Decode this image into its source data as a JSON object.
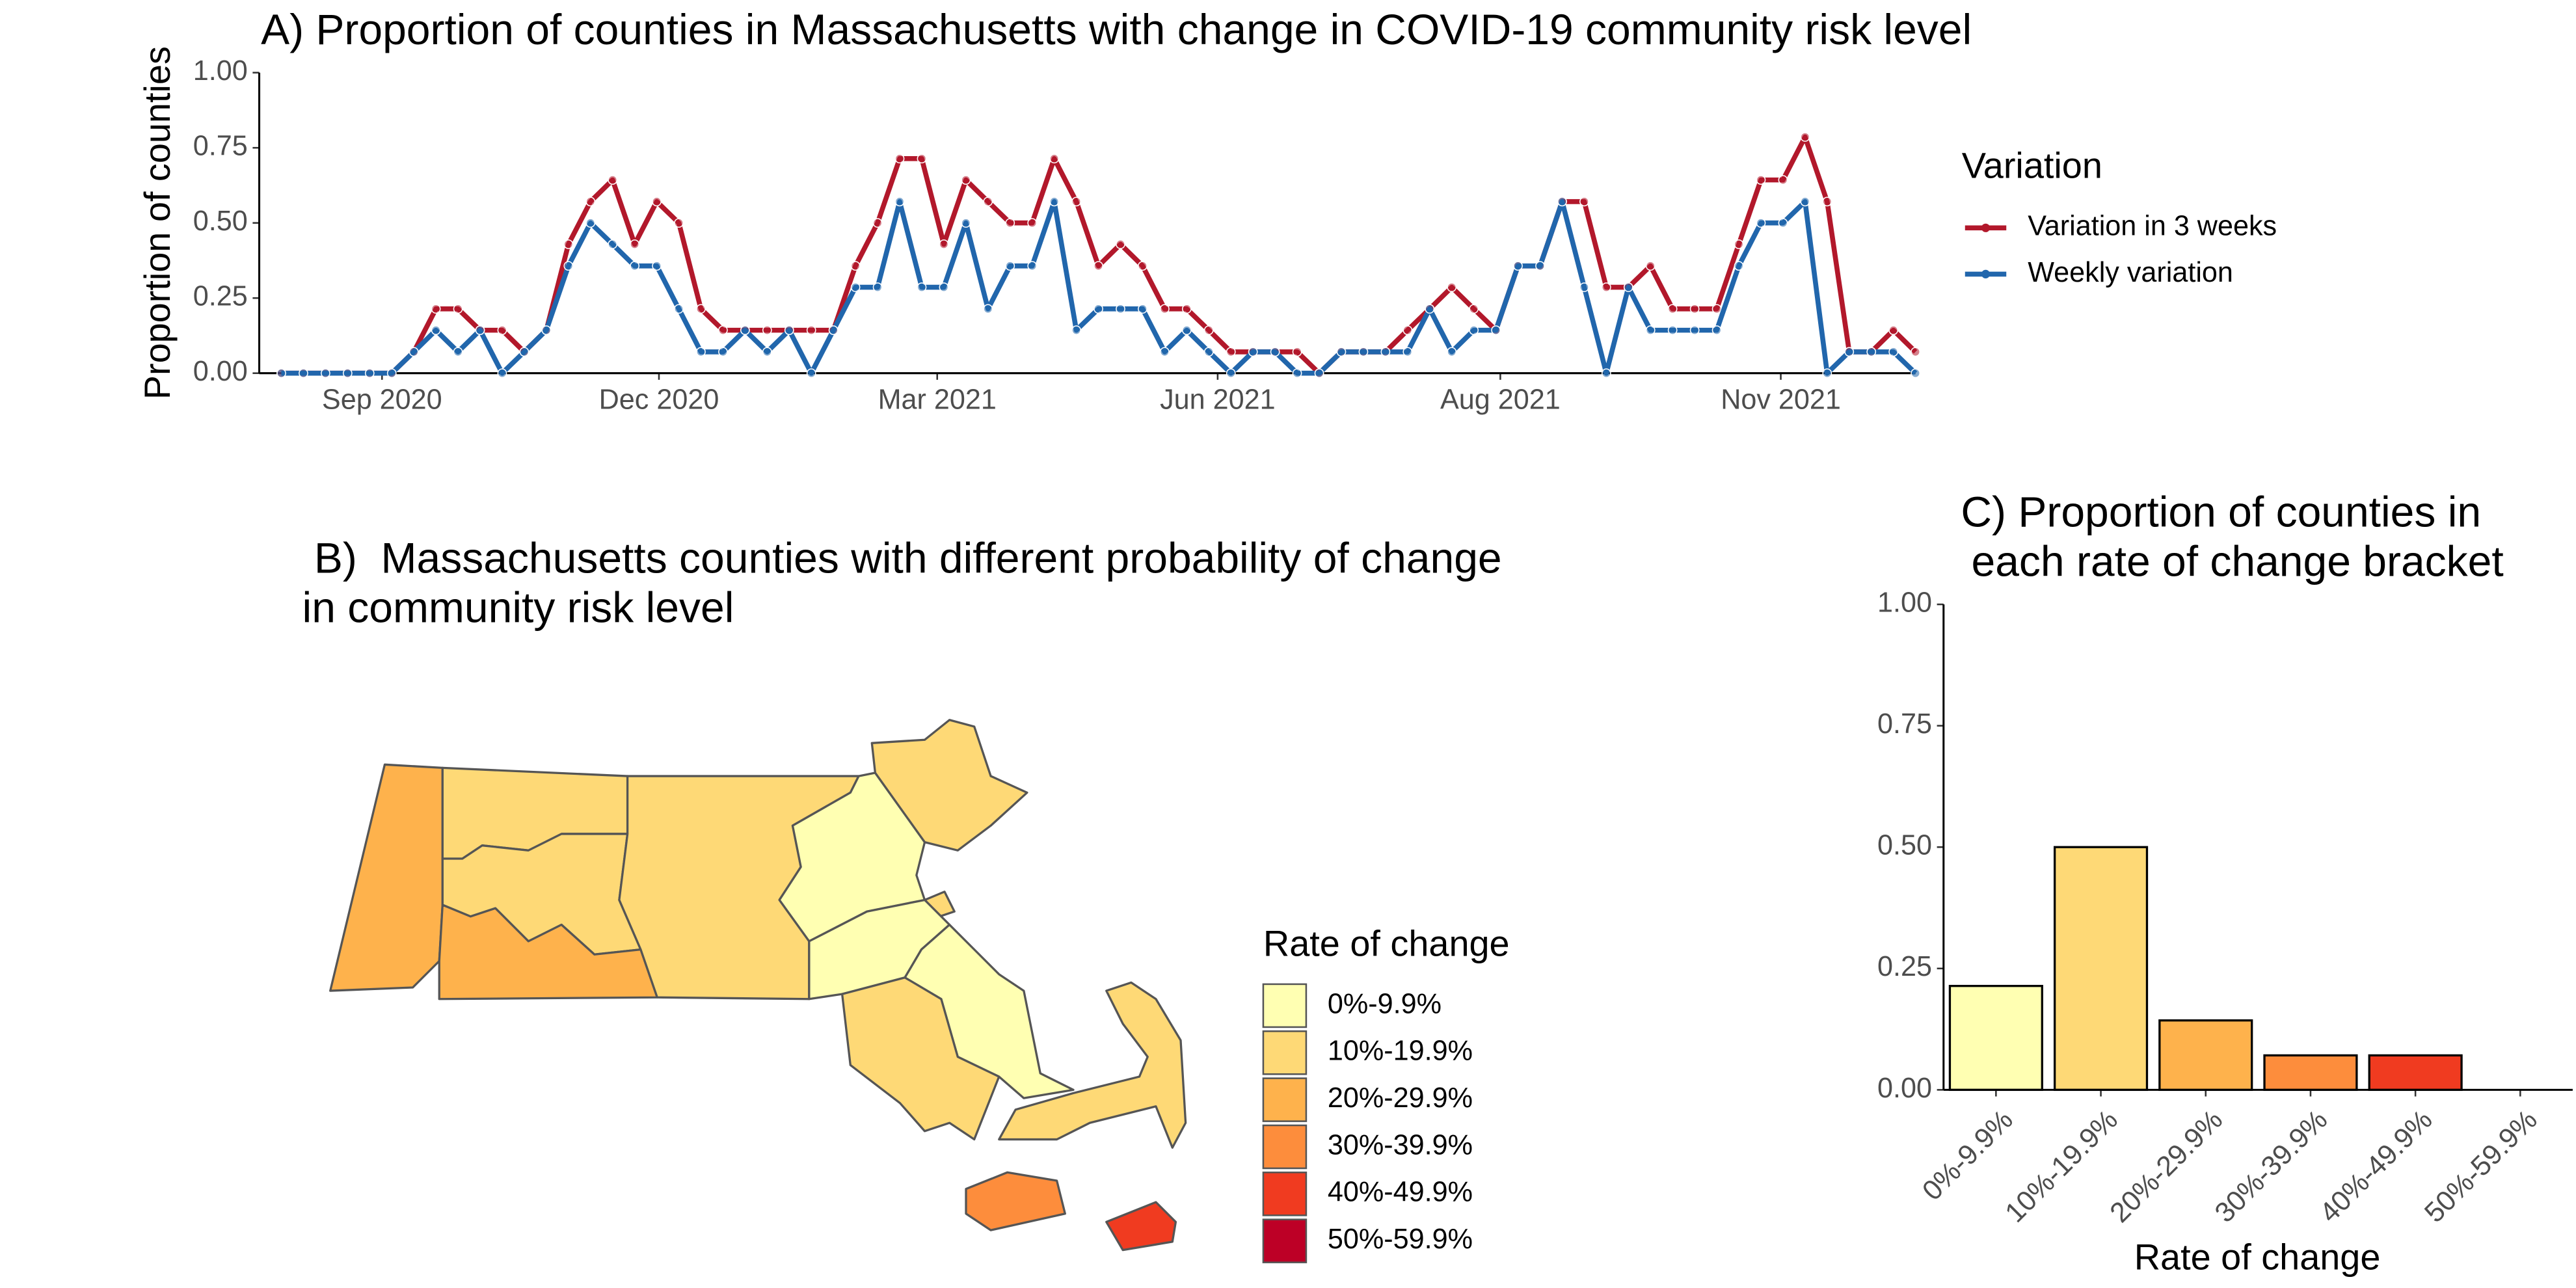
{
  "chart_data": [
    {
      "type": "line",
      "title": "A) Proportion of counties in Massachusetts with change in COVID-19 community risk level",
      "y_label": "Proportion of counties",
      "legend_title": "Variation",
      "x": [
        0,
        1,
        2,
        3,
        4,
        5,
        6,
        7,
        8,
        9,
        10,
        11,
        12,
        13,
        14,
        15,
        16,
        17,
        18,
        19,
        20,
        21,
        22,
        23,
        24,
        25,
        26,
        27,
        28,
        29,
        30,
        31,
        32,
        33,
        34,
        35,
        36,
        37,
        38,
        39,
        40,
        41,
        42,
        43,
        44,
        45,
        46,
        47,
        48,
        49,
        50,
        51,
        52,
        53,
        54,
        55,
        56,
        57,
        58,
        59,
        60,
        61,
        62,
        63,
        64,
        65,
        66,
        67,
        68,
        69,
        70,
        71,
        72,
        73,
        74
      ],
      "xlim": [
        -1,
        74
      ],
      "xticks": [
        {
          "value": 4.56,
          "label": "Sep 2020"
        },
        {
          "value": 17.1,
          "label": "Dec 2020"
        },
        {
          "value": 29.7,
          "label": "Mar 2021"
        },
        {
          "value": 42.4,
          "label": "Jun 2021"
        },
        {
          "value": 55.2,
          "label": "Aug 2021"
        },
        {
          "value": 67.9,
          "label": "Nov 2021"
        }
      ],
      "ylim": [
        0,
        1
      ],
      "yticks": [
        {
          "value": 0,
          "label": "0.00"
        },
        {
          "value": 0.25,
          "label": "0.25"
        },
        {
          "value": 0.5,
          "label": "0.50"
        },
        {
          "value": 0.75,
          "label": "0.75"
        },
        {
          "value": 1,
          "label": "1.00"
        }
      ],
      "series": [
        {
          "name": "Variation in 3 weeks",
          "color": "#b2182b",
          "values": [
            0,
            0,
            0,
            0,
            0,
            0,
            0.071,
            0.214,
            0.214,
            0.143,
            0.143,
            0.071,
            0.143,
            0.429,
            0.571,
            0.643,
            0.429,
            0.571,
            0.5,
            0.214,
            0.143,
            0.143,
            0.143,
            0.143,
            0.143,
            0.143,
            0.357,
            0.5,
            0.714,
            0.714,
            0.429,
            0.643,
            0.571,
            0.5,
            0.5,
            0.714,
            0.571,
            0.357,
            0.429,
            0.357,
            0.214,
            0.214,
            0.143,
            0.071,
            0.071,
            0.071,
            0.071,
            0,
            0.071,
            0.071,
            0.071,
            0.143,
            0.214,
            0.286,
            0.214,
            0.143,
            0.357,
            0.357,
            0.571,
            0.571,
            0.286,
            0.286,
            0.357,
            0.214,
            0.214,
            0.214,
            0.429,
            0.643,
            0.643,
            0.786,
            0.571,
            0.071,
            0.071,
            0.143,
            0.071
          ]
        },
        {
          "name": "Weekly variation",
          "color": "#2166ac",
          "values": [
            0,
            0,
            0,
            0,
            0,
            0,
            0.071,
            0.143,
            0.071,
            0.143,
            0,
            0.071,
            0.143,
            0.357,
            0.5,
            0.429,
            0.357,
            0.357,
            0.214,
            0.071,
            0.071,
            0.143,
            0.071,
            0.143,
            0,
            0.143,
            0.286,
            0.286,
            0.571,
            0.286,
            0.286,
            0.5,
            0.214,
            0.357,
            0.357,
            0.571,
            0.143,
            0.214,
            0.214,
            0.214,
            0.071,
            0.143,
            0.071,
            0,
            0.071,
            0.071,
            0,
            0,
            0.071,
            0.071,
            0.071,
            0.071,
            0.214,
            0.071,
            0.143,
            0.143,
            0.357,
            0.357,
            0.571,
            0.286,
            0,
            0.286,
            0.143,
            0.143,
            0.143,
            0.143,
            0.357,
            0.5,
            0.5,
            0.571,
            0,
            0.071,
            0.071,
            0.071,
            0
          ]
        }
      ]
    },
    {
      "type": "map",
      "title": [
        " B)  Massachusetts counties with different probability of change",
        "in community risk level"
      ],
      "legend_title": "Rate of change",
      "categories": [
        "0%-9.9%",
        "10%-19.9%",
        "20%-29.9%",
        "30%-39.9%",
        "40%-49.9%",
        "50%-59.9%"
      ],
      "colors": [
        "#ffffb2",
        "#fed976",
        "#feb24c",
        "#fd8d3c",
        "#f03b20",
        "#bd0026"
      ]
    },
    {
      "type": "bar",
      "title": [
        "C) Proportion of counties in",
        "each rate of change bracket"
      ],
      "x_label": "Rate of change",
      "categories": [
        "0%-9.9%",
        "10%-19.9%",
        "20%-29.9%",
        "30%-39.9%",
        "40%-49.9%",
        "50%-59.9%"
      ],
      "colors": [
        "#ffffb2",
        "#fed976",
        "#feb24c",
        "#fd8d3c",
        "#f03b20",
        "#bd0026"
      ],
      "values": [
        0.214,
        0.5,
        0.143,
        0.071,
        0.071,
        0
      ],
      "ylim": [
        0,
        1
      ],
      "yticks": [
        {
          "value": 0,
          "label": "0.00"
        },
        {
          "value": 0.25,
          "label": "0.25"
        },
        {
          "value": 0.5,
          "label": "0.50"
        },
        {
          "value": 0.75,
          "label": "0.75"
        },
        {
          "value": 1,
          "label": "1.00"
        }
      ]
    }
  ]
}
